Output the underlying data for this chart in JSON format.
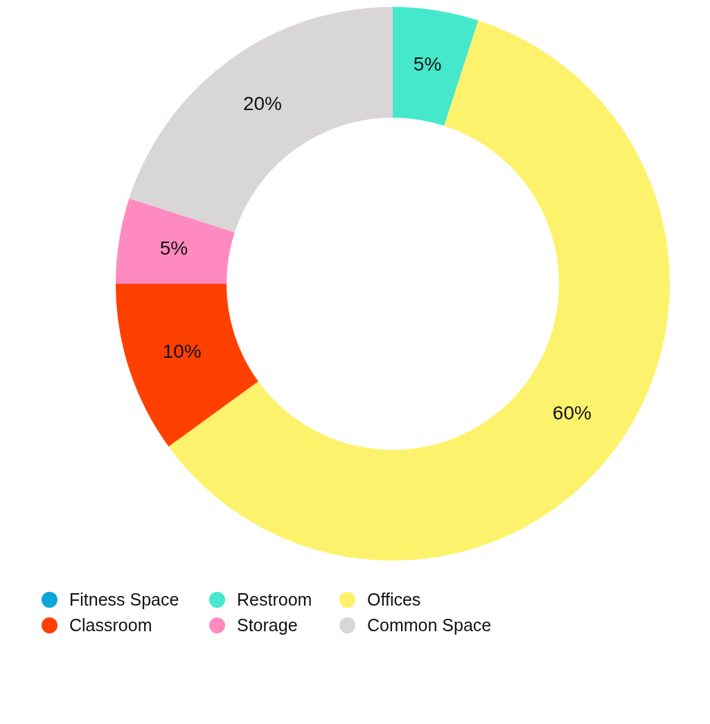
{
  "chart_data": {
    "type": "donut",
    "categories": [
      "Fitness Space",
      "Restroom",
      "Offices",
      "Classroom",
      "Storage",
      "Common Space"
    ],
    "values": [
      0,
      5,
      60,
      10,
      5,
      20
    ],
    "colors": [
      "#0ea5d9",
      "#46e8cc",
      "#fdf26c",
      "#ff4000",
      "#ff8ac0",
      "#d8d6d7"
    ],
    "value_labels": [
      null,
      "5%",
      "60%",
      "10%",
      "5%",
      "20%"
    ],
    "legend": "bottom left"
  }
}
